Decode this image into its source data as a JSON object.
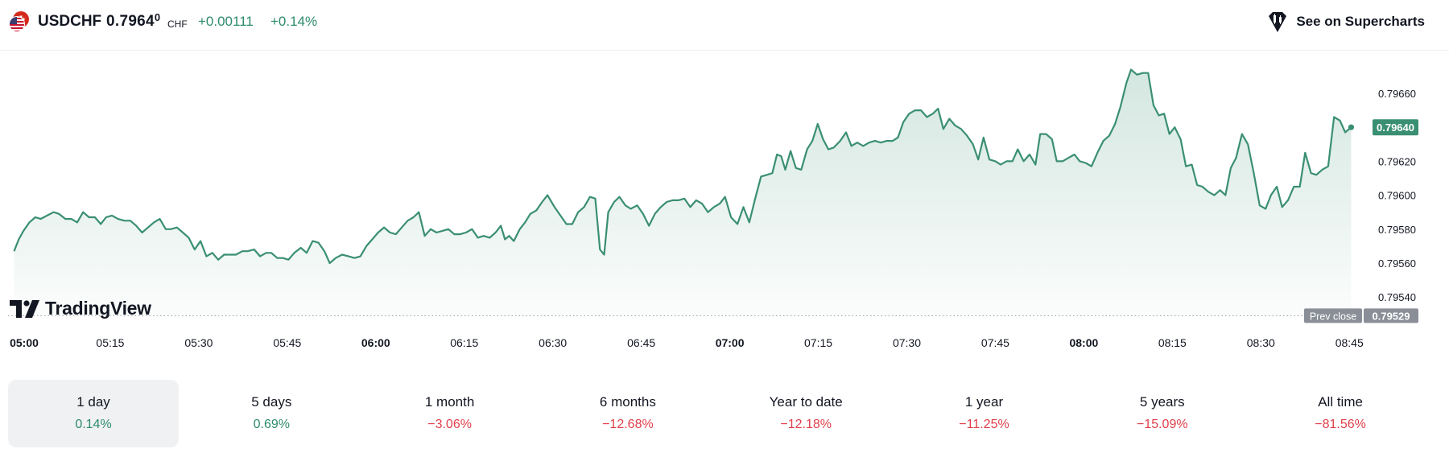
{
  "header": {
    "symbol": "USDCHF",
    "price_main": "0.7964",
    "price_sup": "0",
    "currency": "CHF",
    "change": "+0.00111",
    "change_percent": "+0.14%",
    "supercharts_label": "See on Supercharts",
    "flag_icon": "usd-chf-flag-icon"
  },
  "brand": {
    "logo_text": "TradingView"
  },
  "colors": {
    "line": "#3a8f72",
    "positive": "#2e8b6e",
    "negative": "#e0404b",
    "last_badge": "#3a8f72",
    "prev_badge": "#8a8e97"
  },
  "chart_data": {
    "type": "area",
    "title": "",
    "xlabel": "",
    "ylabel": "",
    "y_ticks": [
      "0.79660",
      "0.79640",
      "0.79620",
      "0.79600",
      "0.79580",
      "0.79560",
      "0.79540"
    ],
    "x_ticks": [
      {
        "label": "05:00",
        "minutes": 0,
        "bold": true
      },
      {
        "label": "05:15",
        "minutes": 15,
        "bold": false
      },
      {
        "label": "05:30",
        "minutes": 30,
        "bold": false
      },
      {
        "label": "05:45",
        "minutes": 45,
        "bold": false
      },
      {
        "label": "06:00",
        "minutes": 60,
        "bold": true
      },
      {
        "label": "06:15",
        "minutes": 75,
        "bold": false
      },
      {
        "label": "06:30",
        "minutes": 90,
        "bold": false
      },
      {
        "label": "06:45",
        "minutes": 105,
        "bold": false
      },
      {
        "label": "07:00",
        "minutes": 120,
        "bold": true
      },
      {
        "label": "07:15",
        "minutes": 135,
        "bold": false
      },
      {
        "label": "07:30",
        "minutes": 150,
        "bold": false
      },
      {
        "label": "07:45",
        "minutes": 165,
        "bold": false
      },
      {
        "label": "08:00",
        "minutes": 180,
        "bold": true
      },
      {
        "label": "08:15",
        "minutes": 195,
        "bold": false
      },
      {
        "label": "08:30",
        "minutes": 210,
        "bold": false
      },
      {
        "label": "08:45",
        "minutes": 225,
        "bold": false
      }
    ],
    "ylim": [
      0.79529,
      0.79675
    ],
    "grid": false,
    "last_value_label": "0.79640",
    "prev_close_label": "Prev close",
    "prev_close_value": "0.79529",
    "series": [
      {
        "points": [
          [
            -1.3,
            0.79567
          ],
          [
            -0.5,
            0.79574
          ],
          [
            0.3,
            0.79579
          ],
          [
            1.3,
            0.79584
          ],
          [
            2.3,
            0.79587
          ],
          [
            3.2,
            0.79586
          ],
          [
            4.3,
            0.79588
          ],
          [
            5.4,
            0.7959
          ],
          [
            6.3,
            0.79589
          ],
          [
            7.4,
            0.79586
          ],
          [
            8.4,
            0.79586
          ],
          [
            9.4,
            0.79584
          ],
          [
            10.4,
            0.7959
          ],
          [
            11.4,
            0.79587
          ],
          [
            12.4,
            0.79587
          ],
          [
            13.4,
            0.79583
          ],
          [
            14.3,
            0.79587
          ],
          [
            15.3,
            0.79588
          ],
          [
            16.3,
            0.79586
          ],
          [
            17.4,
            0.79585
          ],
          [
            18.4,
            0.79585
          ],
          [
            19.4,
            0.79582
          ],
          [
            20.4,
            0.79578
          ],
          [
            21.4,
            0.79581
          ],
          [
            22.4,
            0.79584
          ],
          [
            23.4,
            0.79586
          ],
          [
            24.4,
            0.7958
          ],
          [
            25.3,
            0.7958
          ],
          [
            26.3,
            0.79581
          ],
          [
            27.3,
            0.79578
          ],
          [
            28.3,
            0.79575
          ],
          [
            29.3,
            0.79568
          ],
          [
            30.3,
            0.79573
          ],
          [
            31.3,
            0.79564
          ],
          [
            32.3,
            0.79566
          ],
          [
            33.3,
            0.79562
          ],
          [
            34.3,
            0.79565
          ],
          [
            35.3,
            0.79565
          ],
          [
            36.3,
            0.79565
          ],
          [
            37.4,
            0.79567
          ],
          [
            38.3,
            0.79567
          ],
          [
            39.4,
            0.79568
          ],
          [
            40.4,
            0.79564
          ],
          [
            41.4,
            0.79566
          ],
          [
            42.3,
            0.79566
          ],
          [
            43.3,
            0.79563
          ],
          [
            44.3,
            0.79563
          ],
          [
            45.2,
            0.79562
          ],
          [
            46.2,
            0.79566
          ],
          [
            47.3,
            0.79569
          ],
          [
            48.3,
            0.79566
          ],
          [
            49.3,
            0.79573
          ],
          [
            50.3,
            0.79572
          ],
          [
            51.3,
            0.79567
          ],
          [
            52.2,
            0.7956
          ],
          [
            53.2,
            0.79563
          ],
          [
            54.3,
            0.79565
          ],
          [
            55.4,
            0.79564
          ],
          [
            56.4,
            0.79563
          ],
          [
            57.4,
            0.79564
          ],
          [
            58.4,
            0.7957
          ],
          [
            59.4,
            0.79574
          ],
          [
            60.4,
            0.79578
          ],
          [
            61.4,
            0.79581
          ],
          [
            62.4,
            0.79578
          ],
          [
            63.4,
            0.79577
          ],
          [
            64.4,
            0.79581
          ],
          [
            65.4,
            0.79585
          ],
          [
            66.4,
            0.79587
          ],
          [
            67.3,
            0.7959
          ],
          [
            68.3,
            0.79576
          ],
          [
            69.3,
            0.7958
          ],
          [
            70.3,
            0.79578
          ],
          [
            71.3,
            0.79579
          ],
          [
            72.3,
            0.7958
          ],
          [
            73.3,
            0.79577
          ],
          [
            74.3,
            0.79577
          ],
          [
            75.3,
            0.79578
          ],
          [
            76.3,
            0.7958
          ],
          [
            77.3,
            0.79575
          ],
          [
            78.3,
            0.79576
          ],
          [
            79.3,
            0.79575
          ],
          [
            80.3,
            0.79578
          ],
          [
            81.2,
            0.79582
          ],
          [
            81.9,
            0.79574
          ],
          [
            82.6,
            0.79576
          ],
          [
            83.4,
            0.79573
          ],
          [
            84.4,
            0.7958
          ],
          [
            85.3,
            0.79584
          ],
          [
            86.2,
            0.79589
          ],
          [
            87.2,
            0.79591
          ],
          [
            88.2,
            0.79596
          ],
          [
            89.1,
            0.796
          ],
          [
            90.3,
            0.79593
          ],
          [
            91.3,
            0.79588
          ],
          [
            92.3,
            0.79583
          ],
          [
            93.3,
            0.79583
          ],
          [
            94.3,
            0.7959
          ],
          [
            95.3,
            0.79593
          ],
          [
            96.3,
            0.79599
          ],
          [
            97.2,
            0.79598
          ],
          [
            98.0,
            0.79568
          ],
          [
            98.7,
            0.79565
          ],
          [
            99.4,
            0.7959
          ],
          [
            100.4,
            0.79596
          ],
          [
            101.3,
            0.79599
          ],
          [
            102.3,
            0.79594
          ],
          [
            103.2,
            0.79592
          ],
          [
            104.3,
            0.79594
          ],
          [
            105.3,
            0.79589
          ],
          [
            106.3,
            0.79582
          ],
          [
            107.3,
            0.79589
          ],
          [
            108.3,
            0.79593
          ],
          [
            109.3,
            0.79596
          ],
          [
            110.3,
            0.79597
          ],
          [
            111.3,
            0.79597
          ],
          [
            112.3,
            0.79598
          ],
          [
            113.3,
            0.79593
          ],
          [
            114.3,
            0.79597
          ],
          [
            115.3,
            0.79595
          ],
          [
            116.3,
            0.7959
          ],
          [
            117.3,
            0.79593
          ],
          [
            118.3,
            0.79595
          ],
          [
            119.2,
            0.79599
          ],
          [
            120.2,
            0.79587
          ],
          [
            121.3,
            0.79583
          ],
          [
            122.3,
            0.79593
          ],
          [
            123.3,
            0.79584
          ],
          [
            124.3,
            0.79598
          ],
          [
            125.3,
            0.79611
          ],
          [
            126.3,
            0.79612
          ],
          [
            127.2,
            0.79613
          ],
          [
            128.0,
            0.79624
          ],
          [
            128.7,
            0.79623
          ],
          [
            129.4,
            0.79615
          ],
          [
            130.3,
            0.79626
          ],
          [
            131.2,
            0.79616
          ],
          [
            132.1,
            0.79615
          ],
          [
            133.1,
            0.79627
          ],
          [
            134.0,
            0.79632
          ],
          [
            134.9,
            0.79642
          ],
          [
            135.8,
            0.79633
          ],
          [
            136.7,
            0.79627
          ],
          [
            137.6,
            0.79628
          ],
          [
            138.7,
            0.79632
          ],
          [
            139.7,
            0.79637
          ],
          [
            140.6,
            0.79629
          ],
          [
            141.6,
            0.79631
          ],
          [
            142.6,
            0.79629
          ],
          [
            143.6,
            0.79631
          ],
          [
            144.6,
            0.79632
          ],
          [
            145.6,
            0.79631
          ],
          [
            146.6,
            0.79632
          ],
          [
            147.6,
            0.79632
          ],
          [
            148.5,
            0.79634
          ],
          [
            149.4,
            0.79643
          ],
          [
            150.4,
            0.79648
          ],
          [
            151.4,
            0.7965
          ],
          [
            152.4,
            0.7965
          ],
          [
            153.4,
            0.79646
          ],
          [
            154.4,
            0.79648
          ],
          [
            155.3,
            0.79651
          ],
          [
            156.2,
            0.79639
          ],
          [
            157.2,
            0.79645
          ],
          [
            158.2,
            0.79641
          ],
          [
            159.2,
            0.79639
          ],
          [
            160.2,
            0.79635
          ],
          [
            161.2,
            0.7963
          ],
          [
            162.1,
            0.79621
          ],
          [
            163.0,
            0.79634
          ],
          [
            164.0,
            0.79621
          ],
          [
            165.0,
            0.7962
          ],
          [
            165.9,
            0.79618
          ],
          [
            166.9,
            0.7962
          ],
          [
            167.9,
            0.7962
          ],
          [
            168.8,
            0.79627
          ],
          [
            169.8,
            0.7962
          ],
          [
            170.8,
            0.79624
          ],
          [
            171.8,
            0.79618
          ],
          [
            172.6,
            0.79636
          ],
          [
            173.6,
            0.79636
          ],
          [
            174.6,
            0.79633
          ],
          [
            175.4,
            0.7962
          ],
          [
            176.4,
            0.7962
          ],
          [
            177.4,
            0.79622
          ],
          [
            178.4,
            0.79624
          ],
          [
            179.3,
            0.7962
          ],
          [
            180.3,
            0.79619
          ],
          [
            181.3,
            0.79617
          ],
          [
            182.3,
            0.79625
          ],
          [
            183.3,
            0.79632
          ],
          [
            184.3,
            0.79635
          ],
          [
            185.3,
            0.79642
          ],
          [
            186.2,
            0.79652
          ],
          [
            187.2,
            0.79666
          ],
          [
            188.0,
            0.79674
          ],
          [
            189.0,
            0.79671
          ],
          [
            190.0,
            0.79672
          ],
          [
            190.9,
            0.79672
          ],
          [
            191.8,
            0.79653
          ],
          [
            192.7,
            0.79647
          ],
          [
            193.6,
            0.79648
          ],
          [
            194.5,
            0.79636
          ],
          [
            195.4,
            0.7964
          ],
          [
            196.4,
            0.79633
          ],
          [
            197.3,
            0.79617
          ],
          [
            198.3,
            0.79618
          ],
          [
            199.2,
            0.79606
          ],
          [
            200.1,
            0.79605
          ],
          [
            201.1,
            0.79602
          ],
          [
            202.1,
            0.796
          ],
          [
            203.1,
            0.79603
          ],
          [
            204.0,
            0.796
          ],
          [
            204.9,
            0.79616
          ],
          [
            205.8,
            0.79622
          ],
          [
            206.8,
            0.79636
          ],
          [
            207.8,
            0.7963
          ],
          [
            208.8,
            0.79613
          ],
          [
            209.8,
            0.79594
          ],
          [
            210.8,
            0.79592
          ],
          [
            211.7,
            0.796
          ],
          [
            212.7,
            0.79605
          ],
          [
            213.6,
            0.79593
          ],
          [
            214.6,
            0.79597
          ],
          [
            215.6,
            0.79605
          ],
          [
            216.6,
            0.79605
          ],
          [
            217.5,
            0.79625
          ],
          [
            218.5,
            0.79613
          ],
          [
            219.4,
            0.79612
          ],
          [
            220.4,
            0.79615
          ],
          [
            221.4,
            0.79617
          ],
          [
            222.4,
            0.79646
          ],
          [
            223.4,
            0.79644
          ],
          [
            224.3,
            0.79637
          ],
          [
            225.3,
            0.7964
          ]
        ]
      }
    ]
  },
  "periods": [
    {
      "label": "1 day",
      "value": "0.14%",
      "sign": "pos",
      "active": true
    },
    {
      "label": "5 days",
      "value": "0.69%",
      "sign": "pos",
      "active": false
    },
    {
      "label": "1 month",
      "value": "−3.06%",
      "sign": "neg",
      "active": false
    },
    {
      "label": "6 months",
      "value": "−12.68%",
      "sign": "neg",
      "active": false
    },
    {
      "label": "Year to date",
      "value": "−12.18%",
      "sign": "neg",
      "active": false
    },
    {
      "label": "1 year",
      "value": "−11.25%",
      "sign": "neg",
      "active": false
    },
    {
      "label": "5 years",
      "value": "−15.09%",
      "sign": "neg",
      "active": false
    },
    {
      "label": "All time",
      "value": "−81.56%",
      "sign": "neg",
      "active": false
    }
  ]
}
